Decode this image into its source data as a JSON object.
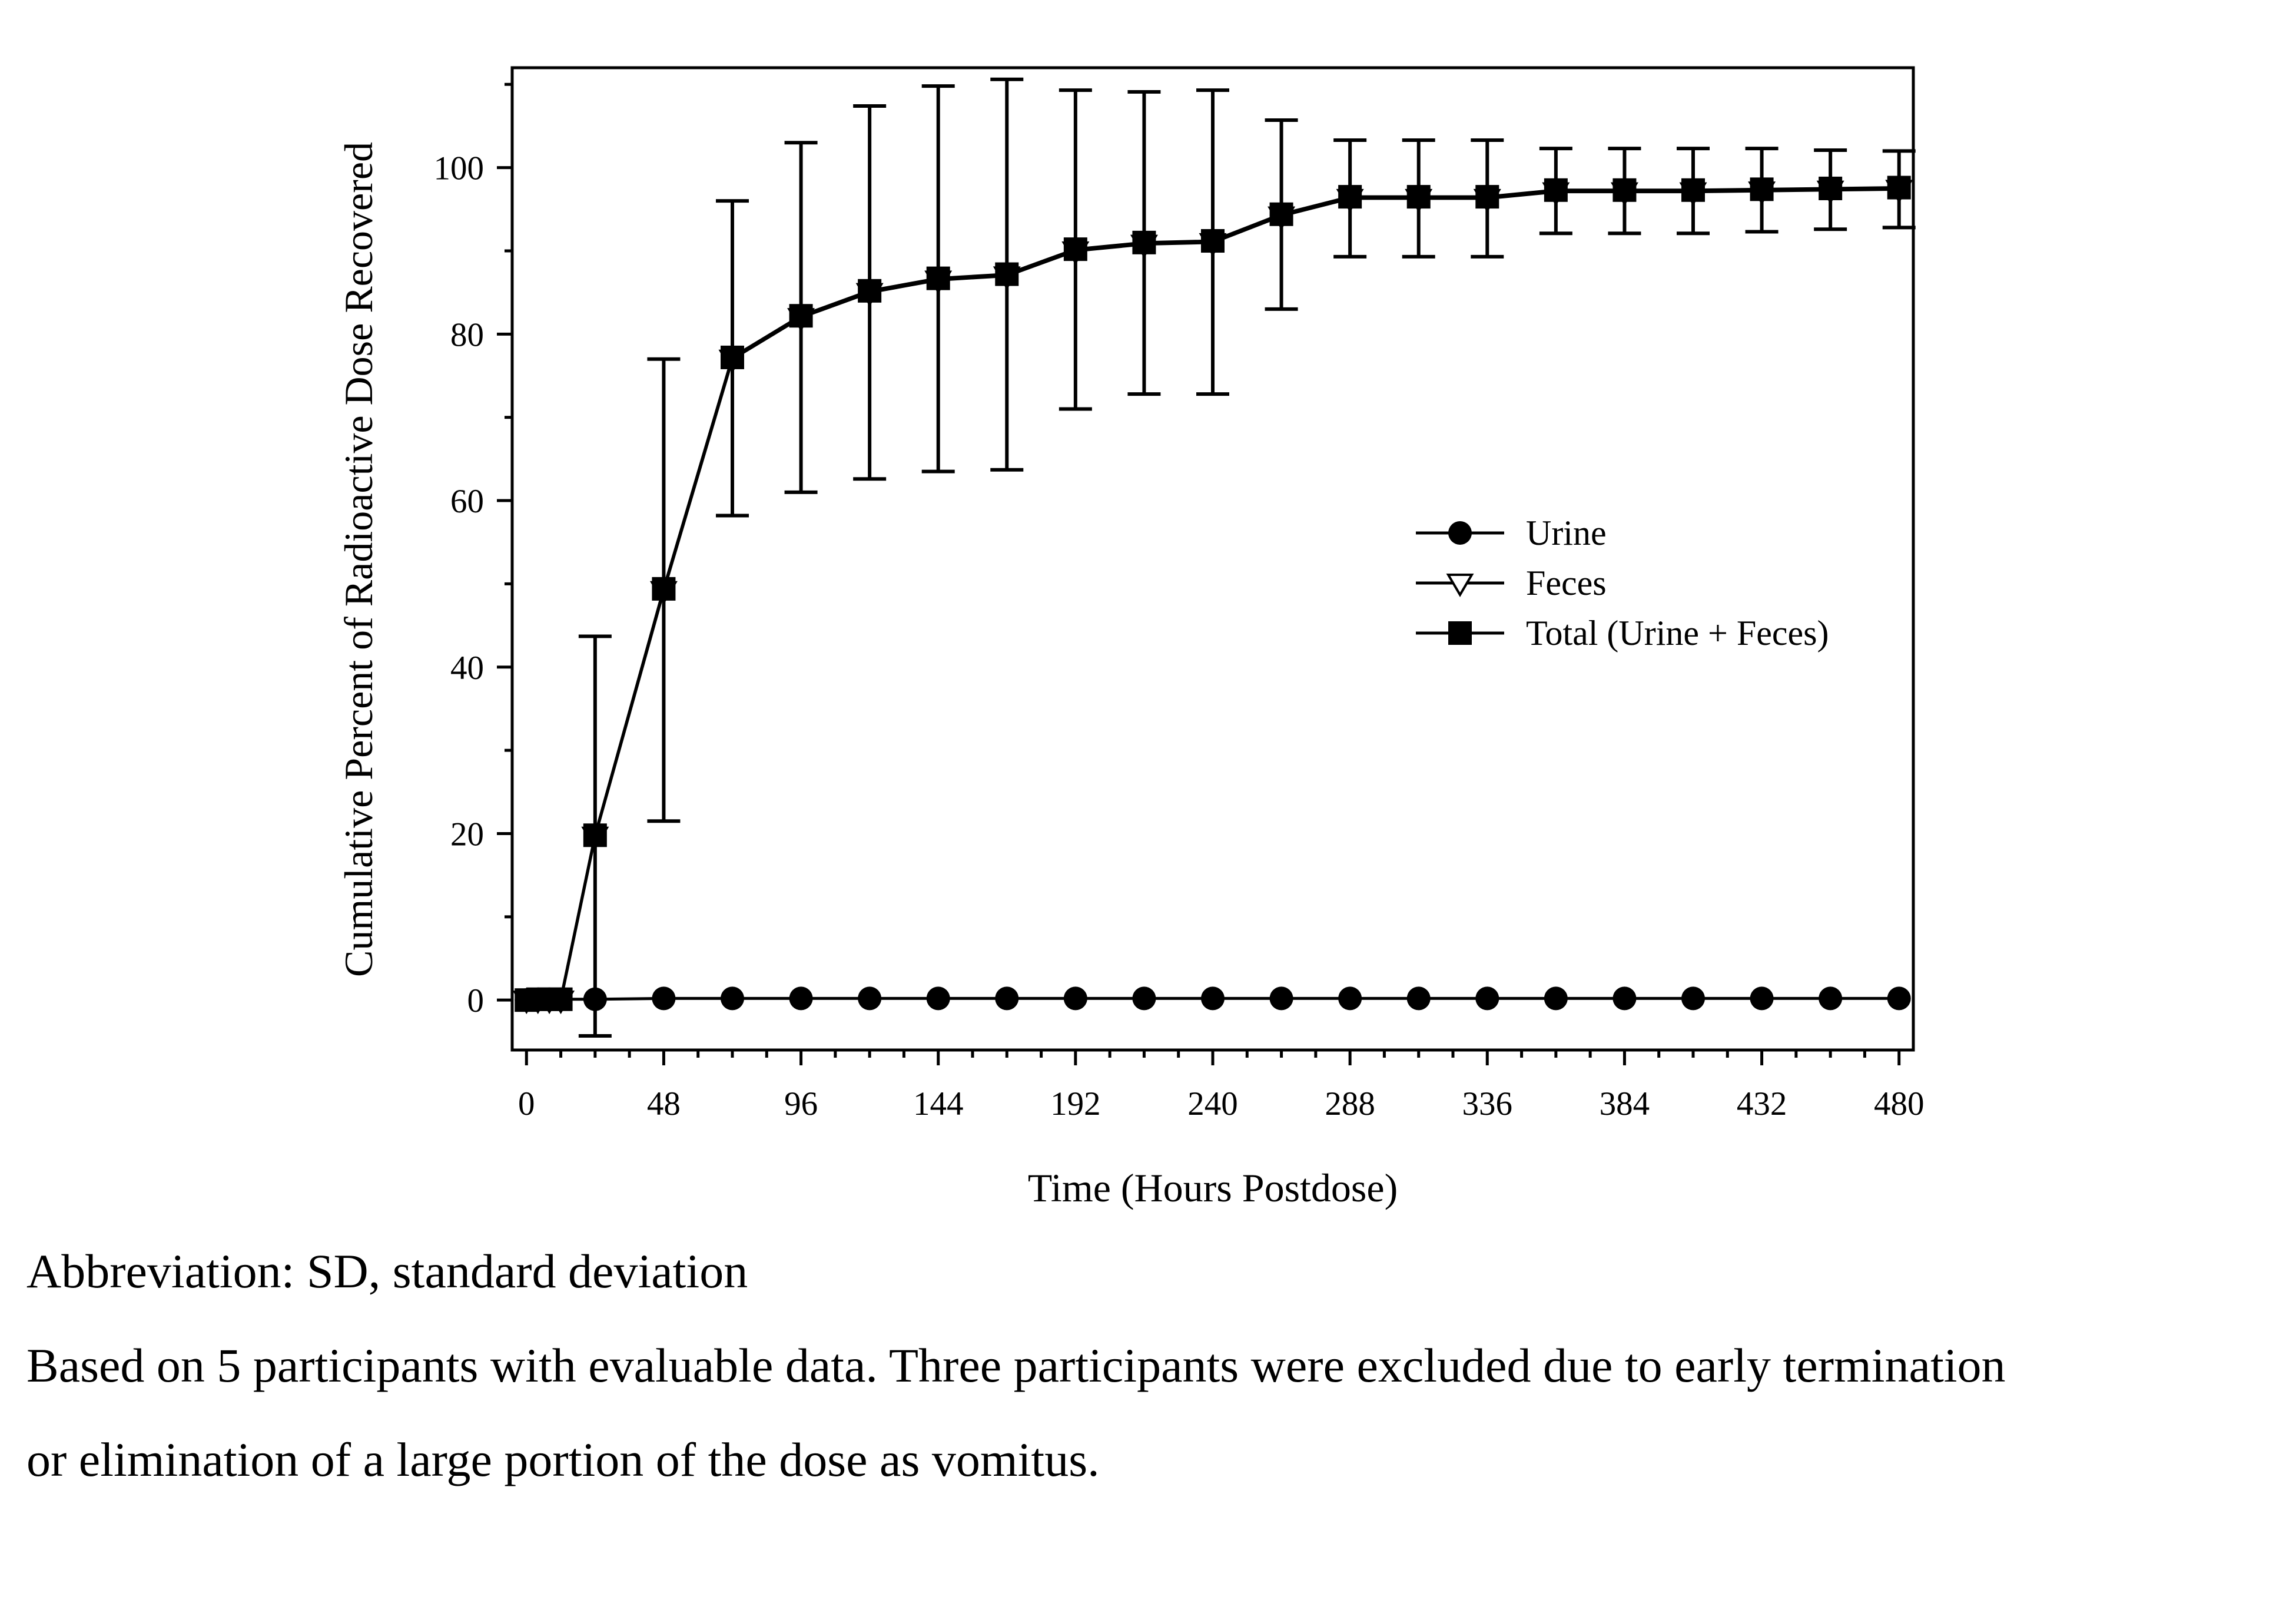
{
  "chart_data": {
    "type": "line",
    "title": "",
    "xlabel": "Time (Hours Postdose)",
    "ylabel": "Cumulative Percent of Radioactive Dose Recovered",
    "xlim": [
      -5,
      485
    ],
    "ylim": [
      -6,
      112
    ],
    "x_ticks": [
      0,
      48,
      96,
      144,
      192,
      240,
      288,
      336,
      384,
      432,
      480
    ],
    "y_ticks": [
      0,
      20,
      40,
      60,
      80,
      100
    ],
    "grid": false,
    "legend_position": "center-right",
    "series": [
      {
        "name": "Urine",
        "marker": "filled-circle",
        "x": [
          0,
          4,
          8,
          12,
          24,
          48,
          72,
          96,
          120,
          144,
          168,
          192,
          216,
          240,
          264,
          288,
          312,
          336,
          360,
          384,
          408,
          432,
          456,
          480
        ],
        "y": [
          0,
          0.1,
          0.1,
          0.1,
          0.1,
          0.2,
          0.2,
          0.2,
          0.2,
          0.2,
          0.2,
          0.2,
          0.2,
          0.2,
          0.2,
          0.2,
          0.2,
          0.2,
          0.2,
          0.2,
          0.2,
          0.2,
          0.2,
          0.2
        ]
      },
      {
        "name": "Feces",
        "marker": "open-triangle-down",
        "x": [
          0,
          4,
          8,
          12,
          24,
          48,
          72,
          96,
          120,
          144,
          168,
          192,
          216,
          240,
          264,
          288,
          312,
          336,
          360,
          384,
          408,
          432,
          456,
          480
        ],
        "y": [
          0,
          0,
          0,
          0,
          19.7,
          49.2,
          77,
          82,
          85,
          86.5,
          87,
          90,
          90.8,
          91,
          94.2,
          96.3,
          96.3,
          96.3,
          97.1,
          97.1,
          97.1,
          97.2,
          97.3,
          97.4
        ]
      },
      {
        "name": "Total (Urine + Feces)",
        "marker": "filled-square",
        "x": [
          0,
          4,
          8,
          12,
          24,
          48,
          72,
          96,
          120,
          144,
          168,
          192,
          216,
          240,
          264,
          288,
          312,
          336,
          360,
          384,
          408,
          432,
          456,
          480
        ],
        "y": [
          0,
          0.1,
          0.1,
          0.1,
          19.8,
          49.4,
          77.2,
          82.2,
          85.2,
          86.7,
          87.2,
          90.2,
          91,
          91.2,
          94.4,
          96.5,
          96.5,
          96.5,
          97.3,
          97.3,
          97.3,
          97.4,
          97.5,
          97.6
        ],
        "error_bars": {
          "x": [
            24,
            48,
            72,
            96,
            120,
            144,
            168,
            192,
            216,
            240,
            264,
            288,
            312,
            336,
            360,
            384,
            408,
            432,
            456,
            480
          ],
          "upper": [
            43.7,
            77,
            96,
            103,
            107.4,
            109.8,
            110.6,
            109.3,
            109.1,
            109.3,
            105.7,
            103.3,
            103.3,
            103.3,
            102.3,
            102.3,
            102.3,
            102.3,
            102.1,
            102
          ],
          "lower": [
            -4.3,
            21.5,
            58.2,
            61,
            62.6,
            63.5,
            63.7,
            71,
            72.8,
            72.8,
            83,
            89.3,
            89.3,
            89.3,
            92.1,
            92.1,
            92.1,
            92.3,
            92.6,
            92.8
          ]
        }
      }
    ]
  },
  "notes": {
    "abbreviation": "Abbreviation: SD, standard deviation",
    "line1": "Based on 5 participants with evaluable data. Three participants were excluded due to early termination",
    "line2": "or elimination of a large portion of the dose as vomitus."
  }
}
